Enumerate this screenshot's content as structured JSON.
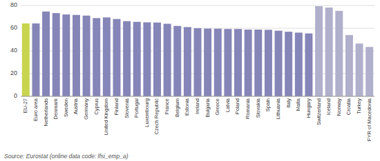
{
  "chart_data": {
    "type": "bar",
    "categories": [
      "EU-27",
      "Euro area",
      "Netherlands",
      "Denmark",
      "Sweden",
      "Austria",
      "Germany",
      "Cyprus",
      "United Kingdom",
      "Finland",
      "Slovenia",
      "Portugal",
      "Luxembourg",
      "Czech Republic",
      "France",
      "Belgium",
      "Estonia",
      "Ireland",
      "Bulgaria",
      "Greece",
      "Latvia",
      "Poland",
      "Romania",
      "Slovakia",
      "Spain",
      "Lithuania",
      "Italy",
      "Malta",
      "Hungary",
      "Switzerland",
      "Iceland",
      "Norway",
      "Croatia",
      "Turkey",
      "FYR of Macedonia"
    ],
    "values": [
      64.2,
      64.2,
      74.7,
      73.3,
      72.1,
      71.7,
      71.1,
      68.9,
      69.5,
      68.1,
      66.2,
      65.6,
      65.2,
      65.0,
      63.9,
      62.0,
      61.0,
      60.0,
      59.7,
      59.6,
      59.3,
      59.3,
      58.8,
      58.8,
      58.6,
      57.8,
      56.9,
      56.1,
      55.4,
      79.4,
      78.2,
      75.3,
      54.0,
      46.5,
      43.5
    ],
    "colors": [
      "#c8d44e",
      "#8585b8",
      "#8585b8",
      "#8585b8",
      "#8585b8",
      "#8585b8",
      "#8585b8",
      "#8585b8",
      "#8585b8",
      "#8585b8",
      "#8585b8",
      "#8585b8",
      "#8585b8",
      "#8585b8",
      "#8585b8",
      "#8585b8",
      "#8585b8",
      "#8585b8",
      "#8585b8",
      "#8585b8",
      "#8585b8",
      "#8585b8",
      "#8585b8",
      "#8585b8",
      "#8585b8",
      "#8585b8",
      "#8585b8",
      "#8585b8",
      "#8585b8",
      "#b0b0cc",
      "#b0b0cc",
      "#b0b0cc",
      "#b0b0cc",
      "#b0b0cc",
      "#b0b0cc"
    ],
    "ylim": [
      0,
      80
    ],
    "yticks": [
      0,
      20,
      40,
      60,
      80
    ],
    "grid": true,
    "annotations": [
      "Source: Eurostat (online data code: lfsi_emp_a)"
    ]
  }
}
